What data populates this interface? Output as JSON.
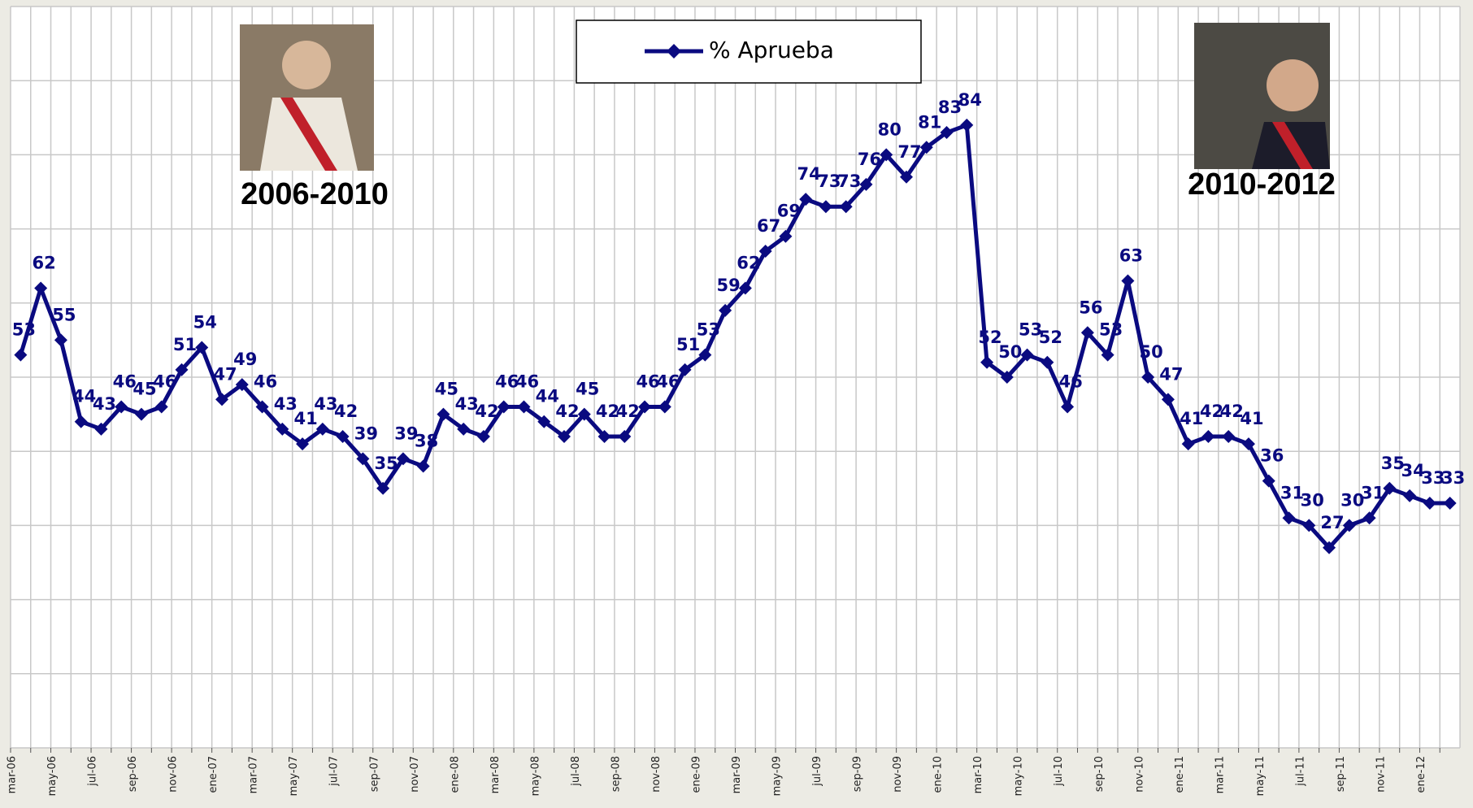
{
  "chart_data": {
    "type": "line",
    "annotations": [
      "2006-2010",
      "2010-2012"
    ],
    "categories": [
      "mar-06",
      null,
      "may-06",
      null,
      "jul-06",
      null,
      "sep-06",
      null,
      "nov-06",
      null,
      "ene-07",
      null,
      "mar-07",
      null,
      "may-07",
      null,
      "jul-07",
      null,
      "sep-07",
      null,
      "nov-07",
      null,
      "ene-08",
      null,
      "mar-08",
      null,
      "may-08",
      null,
      "jul-08",
      null,
      "sep-08",
      null,
      "nov-08",
      null,
      "ene-09",
      null,
      "mar-09",
      null,
      "may-09",
      null,
      "jul-09",
      null,
      "sep-09",
      null,
      "nov-09",
      null,
      "ene-10",
      null,
      "mar-10",
      null,
      "may-10",
      null,
      "jul-10",
      null,
      "sep-10",
      null,
      "nov-10",
      null,
      "ene-11",
      null,
      "mar-11",
      null,
      "may-11",
      null,
      "jul-11",
      null,
      "sep-11",
      null,
      "nov-11",
      null,
      "ene-12",
      null
    ],
    "series": [
      {
        "name": "% Aprueba",
        "color": "#0a0a80",
        "values": [
          53,
          62,
          55,
          44,
          43,
          46,
          45,
          46,
          51,
          54,
          47,
          49,
          46,
          43,
          41,
          43,
          42,
          39,
          35,
          39,
          38,
          45,
          43,
          42,
          46,
          46,
          44,
          42,
          45,
          42,
          42,
          46,
          46,
          51,
          53,
          59,
          62,
          67,
          69,
          74,
          73,
          73,
          76,
          80,
          77,
          81,
          83,
          84,
          52,
          50,
          53,
          52,
          46,
          56,
          53,
          63,
          50,
          47,
          41,
          42,
          42,
          41,
          36,
          31,
          30,
          27,
          30,
          31,
          35,
          34,
          33,
          33
        ]
      }
    ],
    "ylim": [
      0,
      100
    ],
    "yticks": [
      0,
      10,
      20,
      30,
      40,
      50,
      60,
      70,
      80,
      90,
      100
    ],
    "grid": true
  }
}
